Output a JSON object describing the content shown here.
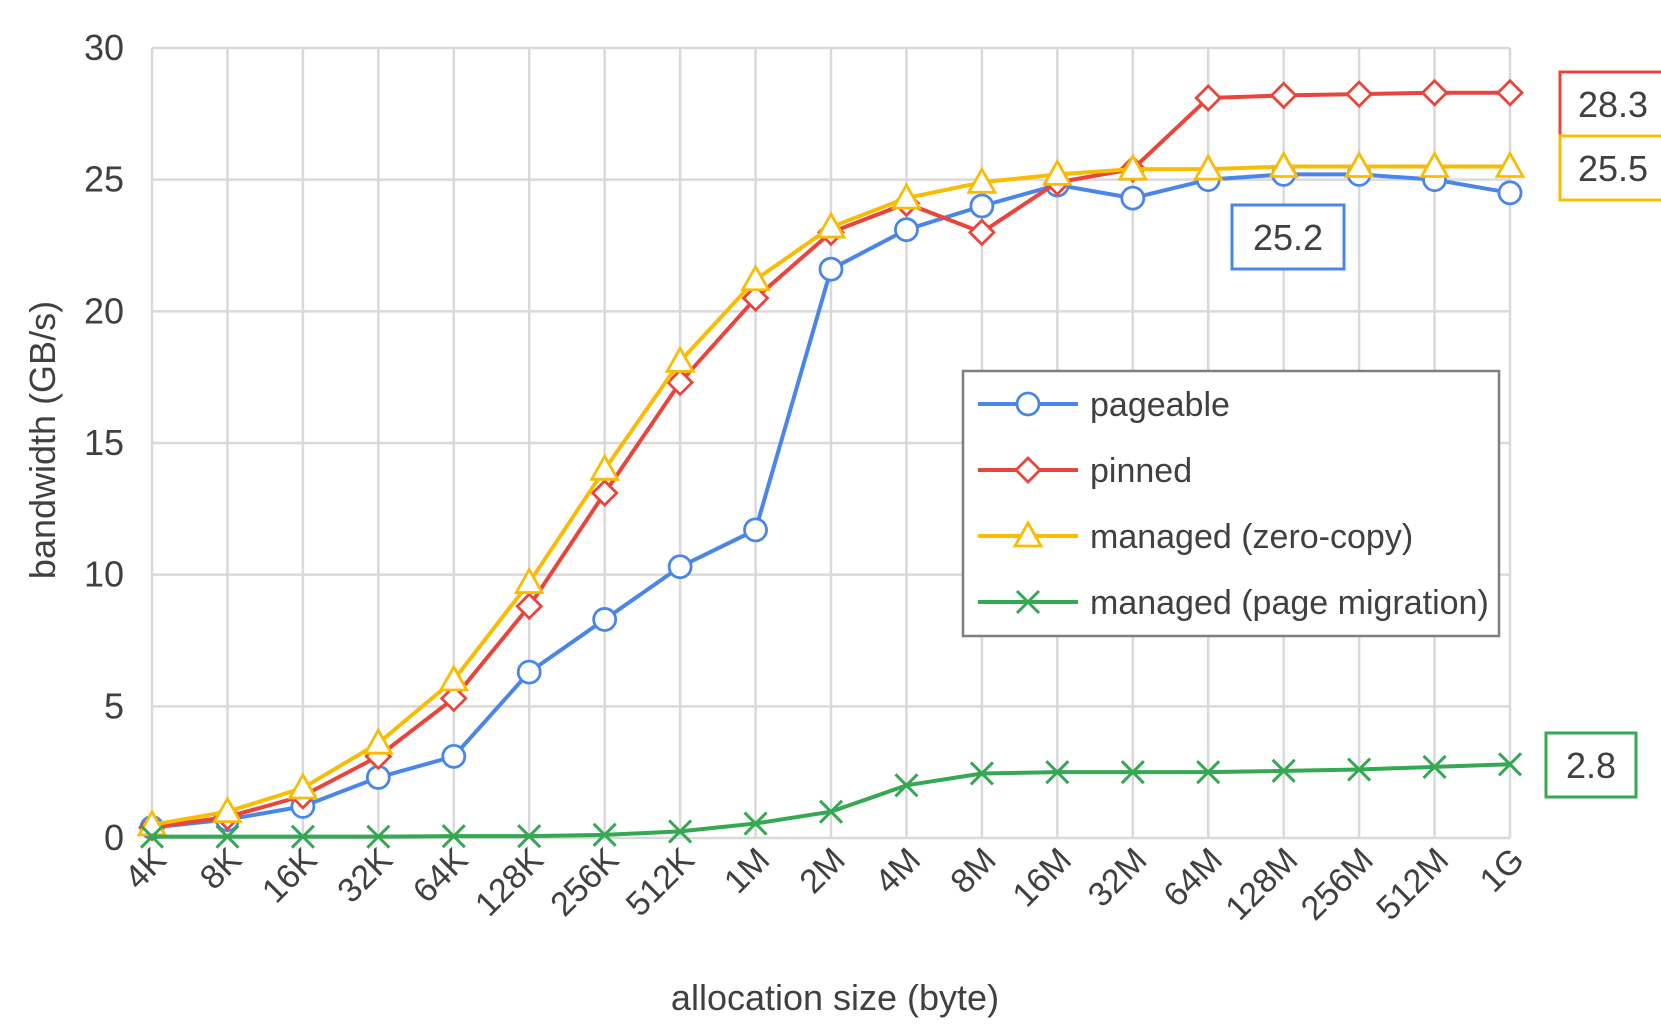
{
  "chart_data": {
    "type": "line",
    "xlabel": "allocation size (byte)",
    "ylabel": "bandwidth (GB/s)",
    "categories": [
      "4K",
      "8K",
      "16K",
      "32K",
      "64K",
      "128K",
      "256K",
      "512K",
      "1M",
      "2M",
      "4M",
      "8M",
      "16M",
      "32M",
      "64M",
      "128M",
      "256M",
      "512M",
      "1G"
    ],
    "ylim": [
      0,
      30
    ],
    "yticks": [
      "0",
      "5",
      "10",
      "15",
      "20",
      "25",
      "30"
    ],
    "grid": true,
    "legend_position": "center-right",
    "series": [
      {
        "name": "pageable",
        "color": "#4a86e8",
        "marker": "circle",
        "values": [
          0.4,
          0.7,
          1.2,
          2.3,
          3.1,
          6.3,
          8.3,
          10.3,
          11.7,
          21.6,
          23.1,
          24.0,
          24.8,
          24.3,
          25.0,
          25.2,
          25.2,
          25.0,
          24.5
        ]
      },
      {
        "name": "pinned",
        "color": "#e8453c",
        "marker": "diamond",
        "values": [
          0.4,
          0.8,
          1.6,
          3.1,
          5.3,
          8.8,
          13.1,
          17.3,
          20.5,
          23.0,
          24.1,
          23.0,
          24.9,
          25.4,
          28.1,
          28.2,
          28.25,
          28.3,
          28.3
        ]
      },
      {
        "name": "managed (zero-copy)",
        "color": "#f9bc05",
        "marker": "triangle",
        "values": [
          0.5,
          1.0,
          1.9,
          3.6,
          6.0,
          9.7,
          14.0,
          18.1,
          21.2,
          23.2,
          24.3,
          24.9,
          25.2,
          25.4,
          25.4,
          25.5,
          25.5,
          25.5,
          25.5
        ]
      },
      {
        "name": "managed (page migration)",
        "color": "#34a853",
        "marker": "x",
        "values": [
          0.05,
          0.05,
          0.05,
          0.05,
          0.07,
          0.07,
          0.12,
          0.25,
          0.55,
          1.0,
          2.0,
          2.45,
          2.5,
          2.5,
          2.5,
          2.55,
          2.6,
          2.7,
          2.8
        ]
      }
    ],
    "callouts": [
      {
        "text": "28.3",
        "color": "#e8453c"
      },
      {
        "text": "25.5",
        "color": "#f9bc05"
      },
      {
        "text": "25.2",
        "color": "#4a86e8"
      },
      {
        "text": "2.8",
        "color": "#34a853"
      }
    ]
  }
}
